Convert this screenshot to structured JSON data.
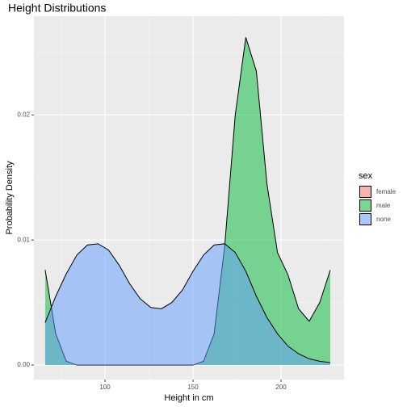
{
  "chart_data": {
    "type": "density",
    "title": "Height Distributions",
    "x_label": "Height in cm",
    "y_label": "Probability Density",
    "legend_title": "sex",
    "legend_position": "right",
    "grid": true,
    "x": [
      66,
      72,
      78,
      84,
      90,
      96,
      102,
      108,
      114,
      120,
      126,
      132,
      138,
      144,
      150,
      156,
      162,
      168,
      174,
      180,
      186,
      192,
      198,
      204,
      210,
      216,
      222,
      228
    ],
    "series": [
      {
        "name": "female",
        "color": "#F8766D",
        "values": [
          null,
          null,
          null,
          null,
          null,
          null,
          null,
          null,
          null,
          null,
          null,
          null,
          null,
          null,
          null,
          null,
          null,
          null,
          null,
          null,
          null,
          null,
          null,
          null,
          null,
          null,
          null,
          null
        ]
      },
      {
        "name": "male",
        "color": "#00BA38",
        "values": [
          0.0076,
          0.0025,
          0.0003,
          0,
          0,
          0,
          0,
          0,
          0,
          0,
          0,
          0,
          0,
          0,
          0,
          0.0003,
          0.0025,
          0.0095,
          0.02,
          0.0262,
          0.0235,
          0.0145,
          0.009,
          0.0072,
          0.0045,
          0.0035,
          0.005,
          0.0076
        ]
      },
      {
        "name": "none",
        "color": "#619CFF",
        "values": [
          0.0034,
          0.0055,
          0.0073,
          0.0088,
          0.0096,
          0.0097,
          0.0092,
          0.008,
          0.0065,
          0.0053,
          0.0046,
          0.0045,
          0.005,
          0.006,
          0.0075,
          0.0088,
          0.0096,
          0.0097,
          0.009,
          0.0075,
          0.0055,
          0.0038,
          0.0025,
          0.0015,
          0.0009,
          0.0005,
          0.0003,
          0.0002
        ]
      }
    ],
    "xlim": [
      59.6,
      235.8
    ],
    "ylim": [
      -0.00116,
      0.0279
    ],
    "xticks": [
      100,
      150,
      200
    ],
    "yticks": [
      {
        "value": 0,
        "label": "0.00"
      },
      {
        "value": 0.01,
        "label": "0.01"
      },
      {
        "value": 0.02,
        "label": "0.02"
      }
    ]
  }
}
